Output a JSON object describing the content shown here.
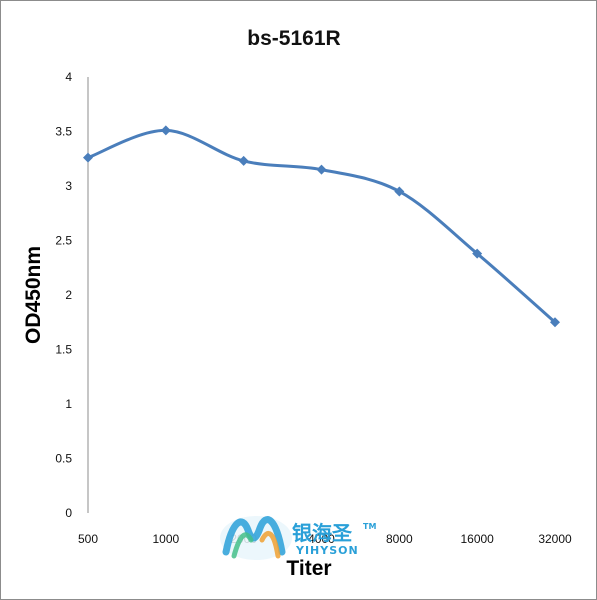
{
  "chart_data": {
    "type": "line",
    "title": "bs-5161R",
    "xlabel": "Titer",
    "ylabel": "OD450nm",
    "categories": [
      "500",
      "1000",
      "2000",
      "4000",
      "8000",
      "16000",
      "32000"
    ],
    "series": [
      {
        "values": [
          3.26,
          3.51,
          3.23,
          3.15,
          2.95,
          2.38,
          1.75
        ]
      }
    ],
    "ylim": [
      0,
      4
    ],
    "yticks": [
      "0",
      "0.5",
      "1",
      "1.5",
      "2",
      "2.5",
      "3",
      "3.5",
      "4"
    ],
    "grid": false,
    "line_color": "#4a7ebb",
    "marker": "diamond"
  },
  "watermark": {
    "chinese": "银海圣",
    "latin": "YIHYSON",
    "tm": "TM"
  }
}
